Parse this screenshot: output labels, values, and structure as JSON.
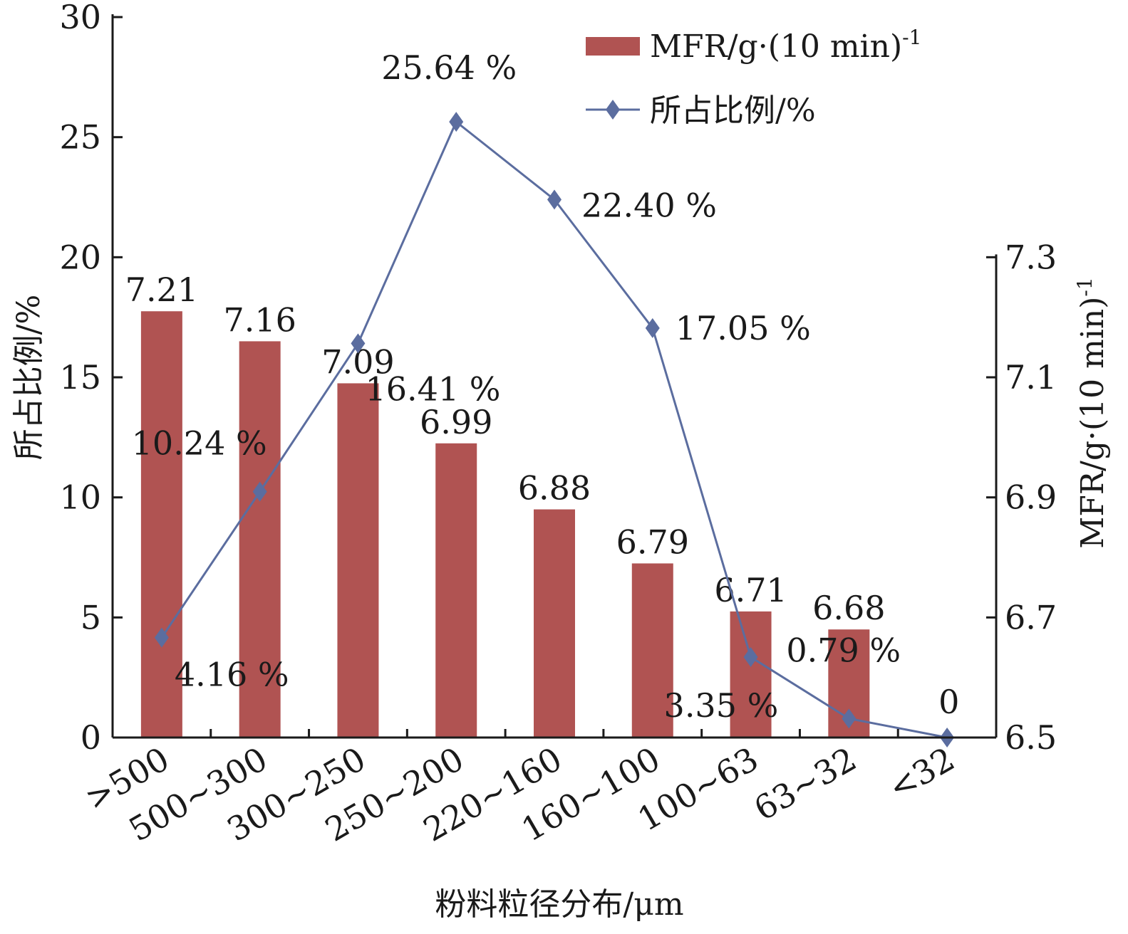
{
  "chart_data": {
    "type": "bar",
    "categories": [
      ">500",
      "500~300",
      "300~250",
      "250~200",
      "220~160",
      "160~100",
      "100~63",
      "63~32",
      "<32"
    ],
    "xlabel": "粉料粒径分布/μm",
    "ylabel_left": "所占比例/%",
    "ylabel_right": "MFR/g·(10 min)",
    "ylabel_right_sup": "-1",
    "ylim_left": [
      0,
      30
    ],
    "ylim_right": [
      6.5,
      7.3
    ],
    "yticks_left": [
      "0",
      "5",
      "10",
      "15",
      "20",
      "25",
      "30"
    ],
    "yticks_right": [
      "6.5",
      "6.7",
      "6.9",
      "7.1",
      "7.3"
    ],
    "grid": false,
    "legend_position": "top-right",
    "series": [
      {
        "name": "MFR/g·(10 min)",
        "name_sup": "-1",
        "kind": "bar",
        "axis": "right",
        "color": "#b05352",
        "values": [
          7.21,
          7.16,
          7.09,
          6.99,
          6.88,
          6.79,
          6.71,
          6.68,
          null
        ],
        "labels": [
          "7.21",
          "7.16",
          "7.09",
          "6.99",
          "6.88",
          "6.79",
          "6.71",
          "6.68",
          ""
        ]
      },
      {
        "name": "所占比例/%",
        "kind": "line",
        "marker": "diamond",
        "axis": "left",
        "color": "#5b6d9f",
        "values": [
          4.16,
          10.24,
          16.41,
          25.64,
          22.4,
          17.05,
          3.35,
          0.79,
          0
        ],
        "labels": [
          "4.16 %",
          "10.24 %",
          "16.41 %",
          "25.64 %",
          "22.40 %",
          "17.05 %",
          "3.35 %",
          "0.79 %",
          "0"
        ]
      }
    ]
  }
}
